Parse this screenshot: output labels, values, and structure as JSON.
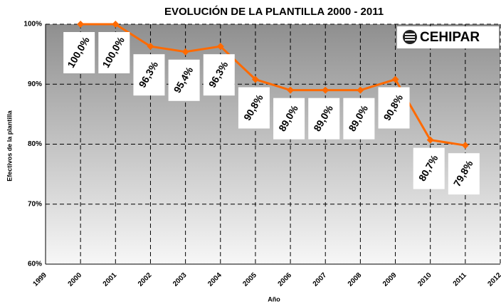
{
  "chart_data": {
    "type": "line",
    "title": "EVOLUCIÓN DE LA PLANTILLA 2000 - 2011",
    "xlabel": "Año",
    "ylabel": "Efectivos de la plantilla",
    "logo": "CEHIPAR",
    "x": [
      2000,
      2001,
      2002,
      2003,
      2004,
      2005,
      2006,
      2007,
      2008,
      2009,
      2010,
      2011
    ],
    "series": [
      {
        "name": "Efectivos",
        "color": "#ff6a00",
        "values": [
          100,
          100,
          96.3,
          95.4,
          96.3,
          90.8,
          89.0,
          89.0,
          89.0,
          90.8,
          80.7,
          79.8
        ],
        "value_labels": [
          "100,0%",
          "100,0%",
          "96,3%",
          "95,4%",
          "96,3%",
          "90,8%",
          "89,0%",
          "89,0%",
          "89,0%",
          "90,8%",
          "80,7%",
          "79,8%"
        ]
      }
    ],
    "xlim": [
      1999,
      2012
    ],
    "xticks": [
      1999,
      2000,
      2001,
      2002,
      2003,
      2004,
      2005,
      2006,
      2007,
      2008,
      2009,
      2010,
      2011,
      2012
    ],
    "ylim": [
      60,
      100
    ],
    "yticks": [
      {
        "value": 60,
        "label": "60%"
      },
      {
        "value": 70,
        "label": "70%"
      },
      {
        "value": 80,
        "label": "80%"
      },
      {
        "value": 90,
        "label": "90%"
      },
      {
        "value": 100,
        "label": "100%"
      }
    ],
    "grid": true
  }
}
